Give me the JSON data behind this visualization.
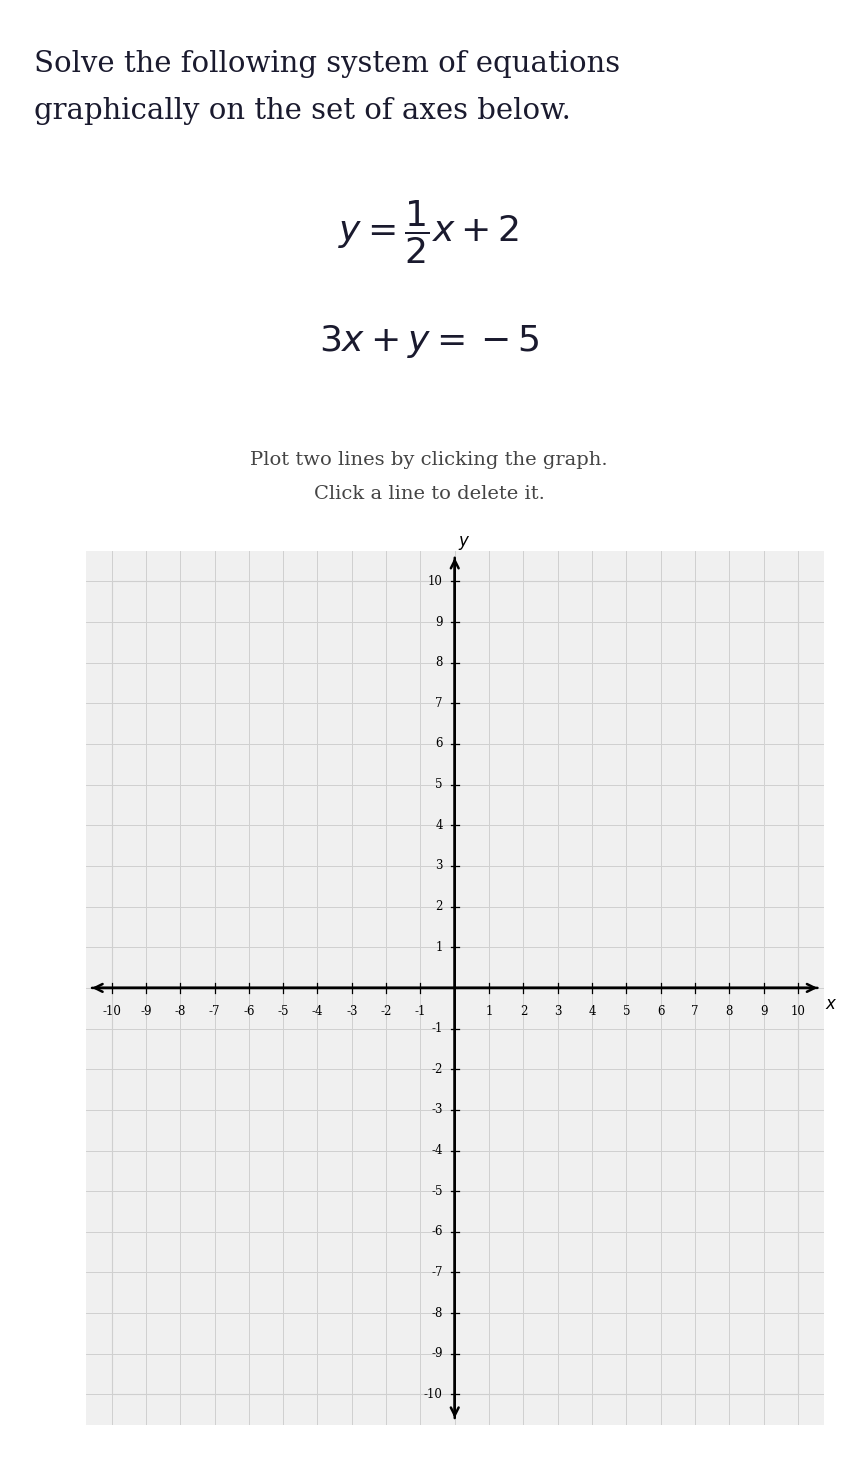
{
  "title_line1": "Solve the following system of equations",
  "title_line2": "graphically on the set of axes below.",
  "eq1_latex": "$y = \\dfrac{1}{2}x + 2$",
  "eq2_latex": "$3x + y = -5$",
  "instruction_line1": "Plot two lines by clicking the graph.",
  "instruction_line2": "Click a line to delete it.",
  "xlim": [
    -10,
    10
  ],
  "ylim": [
    -10,
    10
  ],
  "grid_color": "#d0d0d0",
  "bg_color": "#ffffff",
  "plot_bg_color": "#f0f0f0",
  "text_color": "#1a1a2e",
  "tick_label_fontsize": 8.5,
  "axis_label_fontsize": 12,
  "title_fontsize": 21,
  "eq_fontsize": 26,
  "instr_fontsize": 14
}
